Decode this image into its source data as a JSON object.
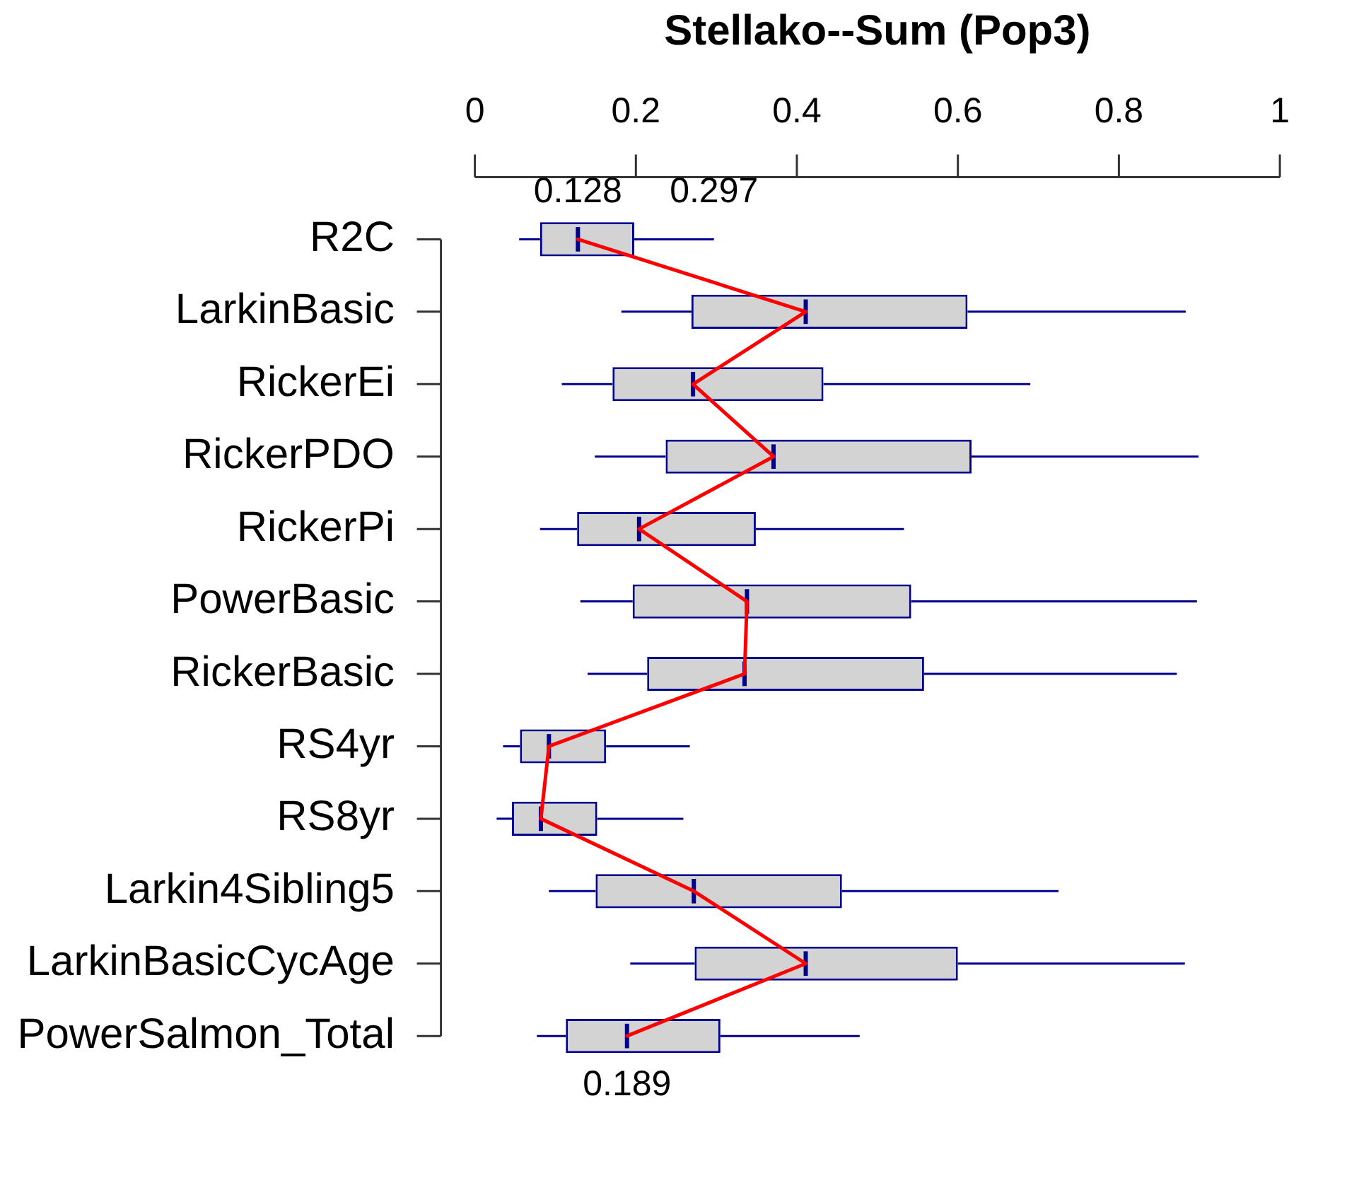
{
  "chart_data": {
    "type": "box",
    "title": "Stellako--Sum (Pop3)",
    "orientation": "horizontal",
    "categories": [
      "R2C",
      "LarkinBasic",
      "RickerEi",
      "RickerPDO",
      "RickerPi",
      "PowerBasic",
      "RickerBasic",
      "RS4yr",
      "RS8yr",
      "Larkin4Sibling5",
      "LarkinBasicCycAge",
      "PowerSalmon_Total"
    ],
    "series": [
      {
        "color": "#00008b",
        "boxes": [
          {
            "low": 0.055,
            "q1": 0.081,
            "median": 0.128,
            "q3": 0.198,
            "high": 0.297
          },
          {
            "low": 0.182,
            "q1": 0.269,
            "median": 0.411,
            "q3": 0.612,
            "high": 0.883
          },
          {
            "low": 0.108,
            "q1": 0.171,
            "median": 0.271,
            "q3": 0.433,
            "high": 0.69
          },
          {
            "low": 0.149,
            "q1": 0.237,
            "median": 0.371,
            "q3": 0.617,
            "high": 0.899
          },
          {
            "low": 0.081,
            "q1": 0.127,
            "median": 0.204,
            "q3": 0.349,
            "high": 0.533
          },
          {
            "low": 0.131,
            "q1": 0.196,
            "median": 0.338,
            "q3": 0.542,
            "high": 0.897
          },
          {
            "low": 0.14,
            "q1": 0.214,
            "median": 0.335,
            "q3": 0.558,
            "high": 0.872
          },
          {
            "low": 0.035,
            "q1": 0.056,
            "median": 0.092,
            "q3": 0.163,
            "high": 0.267
          },
          {
            "low": 0.027,
            "q1": 0.046,
            "median": 0.082,
            "q3": 0.152,
            "high": 0.259
          },
          {
            "low": 0.092,
            "q1": 0.15,
            "median": 0.272,
            "q3": 0.456,
            "high": 0.725
          },
          {
            "low": 0.193,
            "q1": 0.273,
            "median": 0.411,
            "q3": 0.6,
            "high": 0.882
          },
          {
            "low": 0.077,
            "q1": 0.113,
            "median": 0.189,
            "q3": 0.305,
            "high": 0.478
          }
        ]
      },
      {
        "type": "line",
        "color": "#ff0000",
        "values": [
          0.128,
          0.411,
          0.271,
          0.371,
          0.204,
          0.338,
          0.335,
          0.092,
          0.082,
          0.272,
          0.411,
          0.189
        ]
      }
    ],
    "xlim": [
      0,
      1
    ],
    "xticks": [
      0,
      0.2,
      0.4,
      0.6,
      0.8,
      1
    ],
    "annotations": [
      {
        "text": "0.128",
        "x": 0.128,
        "y": "R2C"
      },
      {
        "text": "0.297",
        "x": 0.297,
        "y": "R2C"
      },
      {
        "text": "0.189",
        "x": 0.189,
        "y": "PowerSalmon_Total"
      }
    ],
    "grid": false,
    "legend": false
  }
}
